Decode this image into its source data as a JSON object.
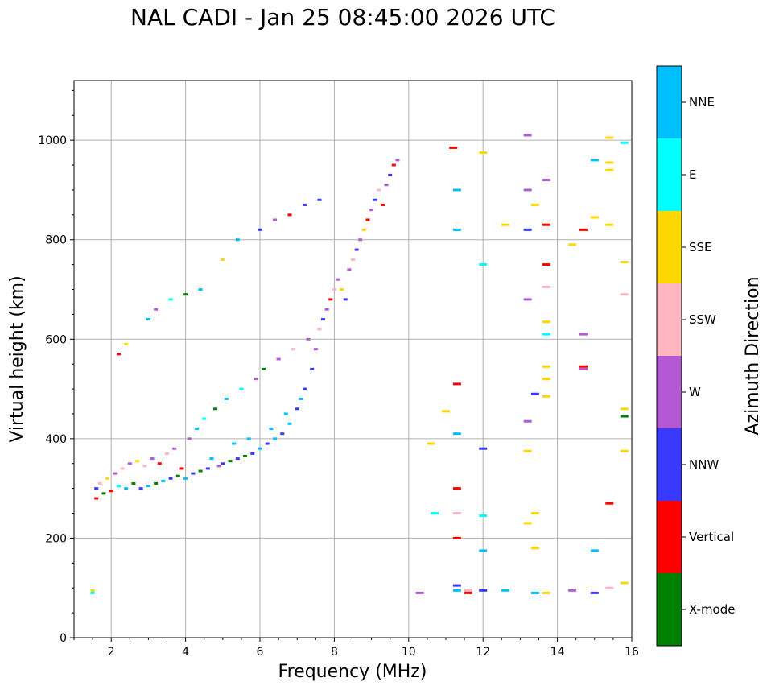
{
  "chart_data": {
    "type": "scatter",
    "title": "NAL CADI - Jan 25 08:45:00 2026 UTC",
    "xlabel": "Frequency (MHz)",
    "ylabel": "Virtual height (km)",
    "xlim": [
      1,
      16
    ],
    "ylim": [
      0,
      1120
    ],
    "xticks": [
      2,
      4,
      6,
      8,
      10,
      12,
      14,
      16
    ],
    "yticks": [
      0,
      200,
      400,
      600,
      800,
      1000
    ],
    "grid": true,
    "colorbar": {
      "label": "Azimuth Direction",
      "categories": [
        {
          "name": "X-mode",
          "color": "#008000"
        },
        {
          "name": "Vertical",
          "color": "#ff0000"
        },
        {
          "name": "NNW",
          "color": "#3a3aff"
        },
        {
          "name": "W",
          "color": "#b459d6"
        },
        {
          "name": "SSW",
          "color": "#ffb6c1"
        },
        {
          "name": "SSE",
          "color": "#ffd700"
        },
        {
          "name": "E",
          "color": "#00ffff"
        },
        {
          "name": "NNE",
          "color": "#00bfff"
        }
      ]
    },
    "points": [
      [
        1.6,
        280,
        "Vertical"
      ],
      [
        1.6,
        300,
        "NNW"
      ],
      [
        1.7,
        310,
        "SSW"
      ],
      [
        1.8,
        290,
        "X-mode"
      ],
      [
        1.9,
        320,
        "SSE"
      ],
      [
        2.0,
        295,
        "Vertical"
      ],
      [
        2.1,
        330,
        "W"
      ],
      [
        2.2,
        305,
        "E"
      ],
      [
        2.3,
        340,
        "SSW"
      ],
      [
        2.4,
        300,
        "NNE"
      ],
      [
        2.5,
        350,
        "W"
      ],
      [
        2.6,
        310,
        "X-mode"
      ],
      [
        2.7,
        355,
        "SSE"
      ],
      [
        2.8,
        300,
        "NNW"
      ],
      [
        2.9,
        345,
        "SSW"
      ],
      [
        3.0,
        305,
        "NNE"
      ],
      [
        3.1,
        360,
        "W"
      ],
      [
        3.2,
        310,
        "X-mode"
      ],
      [
        3.3,
        350,
        "Vertical"
      ],
      [
        3.4,
        315,
        "NNE"
      ],
      [
        3.5,
        370,
        "SSW"
      ],
      [
        3.6,
        320,
        "NNW"
      ],
      [
        3.7,
        380,
        "W"
      ],
      [
        3.8,
        325,
        "X-mode"
      ],
      [
        3.9,
        340,
        "Vertical"
      ],
      [
        4.0,
        320,
        "NNE"
      ],
      [
        4.1,
        400,
        "W"
      ],
      [
        4.2,
        330,
        "NNW"
      ],
      [
        4.3,
        420,
        "NNE"
      ],
      [
        4.4,
        335,
        "X-mode"
      ],
      [
        4.5,
        440,
        "E"
      ],
      [
        4.6,
        340,
        "NNW"
      ],
      [
        4.7,
        360,
        "NNE"
      ],
      [
        4.8,
        460,
        "X-mode"
      ],
      [
        4.9,
        345,
        "W"
      ],
      [
        5.0,
        350,
        "NNW"
      ],
      [
        5.1,
        480,
        "NNE"
      ],
      [
        5.2,
        355,
        "X-mode"
      ],
      [
        5.3,
        390,
        "NNE"
      ],
      [
        5.4,
        360,
        "NNW"
      ],
      [
        5.5,
        500,
        "E"
      ],
      [
        5.6,
        365,
        "X-mode"
      ],
      [
        5.7,
        400,
        "NNE"
      ],
      [
        5.8,
        370,
        "NNW"
      ],
      [
        5.9,
        520,
        "W"
      ],
      [
        6.0,
        380,
        "NNE"
      ],
      [
        6.1,
        540,
        "X-mode"
      ],
      [
        6.2,
        390,
        "NNW"
      ],
      [
        6.3,
        420,
        "NNE"
      ],
      [
        6.4,
        400,
        "NNE"
      ],
      [
        6.5,
        560,
        "W"
      ],
      [
        6.6,
        410,
        "NNW"
      ],
      [
        6.7,
        450,
        "NNE"
      ],
      [
        6.8,
        430,
        "NNE"
      ],
      [
        6.9,
        580,
        "SSW"
      ],
      [
        7.0,
        460,
        "NNW"
      ],
      [
        7.1,
        480,
        "NNE"
      ],
      [
        7.2,
        500,
        "NNW"
      ],
      [
        7.3,
        600,
        "W"
      ],
      [
        7.4,
        540,
        "NNW"
      ],
      [
        7.5,
        580,
        "W"
      ],
      [
        7.6,
        620,
        "SSW"
      ],
      [
        7.7,
        640,
        "NNW"
      ],
      [
        7.8,
        660,
        "W"
      ],
      [
        7.9,
        680,
        "Vertical"
      ],
      [
        8.0,
        700,
        "SSW"
      ],
      [
        8.1,
        720,
        "W"
      ],
      [
        8.2,
        700,
        "SSE"
      ],
      [
        8.3,
        680,
        "NNW"
      ],
      [
        8.4,
        740,
        "W"
      ],
      [
        8.5,
        760,
        "SSW"
      ],
      [
        8.6,
        780,
        "NNW"
      ],
      [
        8.7,
        800,
        "W"
      ],
      [
        8.8,
        820,
        "SSE"
      ],
      [
        8.9,
        840,
        "Vertical"
      ],
      [
        9.0,
        860,
        "W"
      ],
      [
        9.1,
        880,
        "NNW"
      ],
      [
        9.2,
        900,
        "SSW"
      ],
      [
        9.3,
        870,
        "Vertical"
      ],
      [
        9.4,
        910,
        "W"
      ],
      [
        9.5,
        930,
        "NNW"
      ],
      [
        9.6,
        950,
        "Vertical"
      ],
      [
        9.7,
        960,
        "W"
      ],
      [
        1.5,
        95,
        "SSE"
      ],
      [
        1.5,
        90,
        "E"
      ],
      [
        2.2,
        570,
        "Vertical"
      ],
      [
        2.4,
        590,
        "SSE"
      ],
      [
        3.0,
        640,
        "NNE"
      ],
      [
        3.2,
        660,
        "W"
      ],
      [
        3.6,
        680,
        "E"
      ],
      [
        4.0,
        690,
        "X-mode"
      ],
      [
        4.4,
        700,
        "NNE"
      ],
      [
        5.0,
        760,
        "SSE"
      ],
      [
        5.4,
        800,
        "NNE"
      ],
      [
        6.0,
        820,
        "NNW"
      ],
      [
        6.4,
        840,
        "W"
      ],
      [
        6.8,
        850,
        "Vertical"
      ],
      [
        7.2,
        870,
        "NNW"
      ],
      [
        7.6,
        880,
        "NNW"
      ],
      [
        10.3,
        90,
        "W"
      ],
      [
        10.6,
        390,
        "SSE"
      ],
      [
        10.7,
        250,
        "E"
      ],
      [
        11.0,
        455,
        "SSE"
      ],
      [
        11.2,
        985,
        "Vertical"
      ],
      [
        11.3,
        900,
        "NNE"
      ],
      [
        11.3,
        820,
        "NNE"
      ],
      [
        11.3,
        300,
        "Vertical"
      ],
      [
        11.3,
        250,
        "SSW"
      ],
      [
        11.3,
        200,
        "Vertical"
      ],
      [
        11.3,
        105,
        "NNW"
      ],
      [
        11.3,
        95,
        "NNE"
      ],
      [
        11.3,
        510,
        "Vertical"
      ],
      [
        11.3,
        410,
        "NNE"
      ],
      [
        11.6,
        95,
        "SSW"
      ],
      [
        11.6,
        90,
        "Vertical"
      ],
      [
        12.0,
        975,
        "SSE"
      ],
      [
        12.0,
        750,
        "E"
      ],
      [
        12.0,
        380,
        "NNW"
      ],
      [
        12.0,
        245,
        "E"
      ],
      [
        12.0,
        175,
        "NNE"
      ],
      [
        12.0,
        95,
        "NNW"
      ],
      [
        12.6,
        830,
        "SSE"
      ],
      [
        12.6,
        95,
        "NNE"
      ],
      [
        13.2,
        1010,
        "W"
      ],
      [
        13.2,
        900,
        "W"
      ],
      [
        13.2,
        820,
        "NNW"
      ],
      [
        13.2,
        680,
        "W"
      ],
      [
        13.2,
        435,
        "W"
      ],
      [
        13.2,
        375,
        "SSE"
      ],
      [
        13.2,
        230,
        "SSE"
      ],
      [
        13.4,
        870,
        "SSE"
      ],
      [
        13.4,
        490,
        "NNW"
      ],
      [
        13.4,
        250,
        "SSE"
      ],
      [
        13.4,
        180,
        "SSE"
      ],
      [
        13.4,
        90,
        "NNE"
      ],
      [
        13.7,
        920,
        "W"
      ],
      [
        13.7,
        830,
        "Vertical"
      ],
      [
        13.7,
        750,
        "Vertical"
      ],
      [
        13.7,
        705,
        "SSW"
      ],
      [
        13.7,
        635,
        "SSE"
      ],
      [
        13.7,
        610,
        "E"
      ],
      [
        13.7,
        545,
        "SSE"
      ],
      [
        13.7,
        520,
        "SSE"
      ],
      [
        13.7,
        485,
        "SSE"
      ],
      [
        13.7,
        90,
        "SSE"
      ],
      [
        14.4,
        790,
        "SSE"
      ],
      [
        14.4,
        95,
        "W"
      ],
      [
        14.7,
        820,
        "Vertical"
      ],
      [
        14.7,
        610,
        "W"
      ],
      [
        14.7,
        545,
        "Vertical"
      ],
      [
        14.7,
        540,
        "W"
      ],
      [
        15.0,
        960,
        "NNE"
      ],
      [
        15.0,
        845,
        "SSE"
      ],
      [
        15.0,
        175,
        "NNE"
      ],
      [
        15.0,
        90,
        "NNW"
      ],
      [
        15.4,
        1005,
        "SSE"
      ],
      [
        15.4,
        955,
        "SSE"
      ],
      [
        15.4,
        940,
        "SSE"
      ],
      [
        15.4,
        830,
        "SSE"
      ],
      [
        15.4,
        270,
        "Vertical"
      ],
      [
        15.4,
        100,
        "SSW"
      ],
      [
        15.8,
        995,
        "E"
      ],
      [
        15.8,
        755,
        "SSE"
      ],
      [
        15.8,
        690,
        "SSW"
      ],
      [
        15.8,
        460,
        "SSE"
      ],
      [
        15.8,
        445,
        "X-mode"
      ],
      [
        15.8,
        375,
        "SSE"
      ],
      [
        15.8,
        110,
        "SSE"
      ]
    ]
  }
}
